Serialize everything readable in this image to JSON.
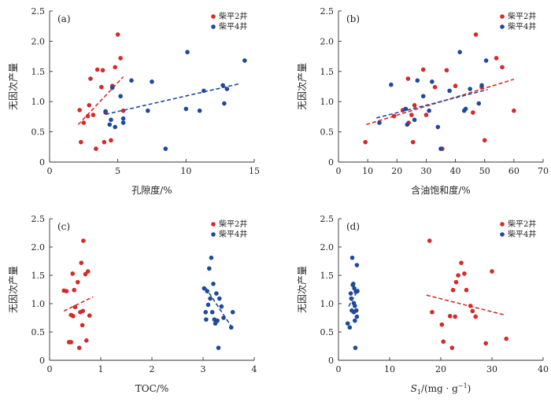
{
  "figure_title": "",
  "colors": {
    "well2": "#d42a2a",
    "well4": "#1f4a99",
    "axis": "#333333"
  },
  "legend": {
    "well2": "柴平2井",
    "well4": "柴平4井",
    "placement": "top-right"
  },
  "chart_data": [
    {
      "type": "scatter",
      "panel": "(a)",
      "xlabel": "孔隙度/%",
      "ylabel": "无因次产量",
      "xlim": [
        0,
        15
      ],
      "ylim": [
        0,
        2.5
      ],
      "xticks": [
        0,
        5,
        10,
        15
      ],
      "yticks": [
        0,
        0.5,
        1.0,
        1.5,
        2.0,
        2.5
      ],
      "ytick_labels": [
        "0",
        "0.5",
        "1.0",
        "1.5",
        "2.0",
        "2.5"
      ],
      "series": [
        {
          "name": "柴平2井",
          "key": "well2",
          "points": [
            [
              2.2,
              0.86
            ],
            [
              2.3,
              0.33
            ],
            [
              2.5,
              0.65
            ],
            [
              2.8,
              0.76
            ],
            [
              2.9,
              0.94
            ],
            [
              3.0,
              1.38
            ],
            [
              3.2,
              0.78
            ],
            [
              3.4,
              0.22
            ],
            [
              3.5,
              1.53
            ],
            [
              3.8,
              1.24
            ],
            [
              3.9,
              1.52
            ],
            [
              4.0,
              0.33
            ],
            [
              4.1,
              0.82
            ],
            [
              4.5,
              0.36
            ],
            [
              4.6,
              1.26
            ],
            [
              4.8,
              1.57
            ],
            [
              5.0,
              2.11
            ],
            [
              5.2,
              1.72
            ],
            [
              5.4,
              0.85
            ]
          ],
          "trend": [
            [
              2.1,
              0.62
            ],
            [
              5.4,
              1.41
            ]
          ]
        },
        {
          "name": "柴平4井",
          "key": "well4",
          "points": [
            [
              4.1,
              0.84
            ],
            [
              4.4,
              0.62
            ],
            [
              4.5,
              0.7
            ],
            [
              4.6,
              1.23
            ],
            [
              4.8,
              0.58
            ],
            [
              5.2,
              1.09
            ],
            [
              5.4,
              0.72
            ],
            [
              5.4,
              0.65
            ],
            [
              6.0,
              1.35
            ],
            [
              7.2,
              0.85
            ],
            [
              7.5,
              1.33
            ],
            [
              8.5,
              0.22
            ],
            [
              10.0,
              0.88
            ],
            [
              10.1,
              1.82
            ],
            [
              11.0,
              0.85
            ],
            [
              11.3,
              1.18
            ],
            [
              12.7,
              1.27
            ],
            [
              12.8,
              0.97
            ],
            [
              13.0,
              1.21
            ],
            [
              14.3,
              1.68
            ]
          ],
          "trend": [
            [
              4.1,
              0.79
            ],
            [
              14.0,
              1.3
            ]
          ]
        }
      ]
    },
    {
      "type": "scatter",
      "panel": "(b)",
      "xlabel": "含油饱和度/%",
      "ylabel": "无因次产量",
      "xlim": [
        0,
        70
      ],
      "ylim": [
        0,
        2.5
      ],
      "xticks": [
        0,
        10,
        20,
        30,
        40,
        50,
        60,
        70
      ],
      "yticks": [
        0,
        0.5,
        1.0,
        1.5,
        2.0,
        2.5
      ],
      "ytick_labels": [
        "0",
        "0.5",
        "1.0",
        "1.5",
        "2.0",
        "2.5"
      ],
      "series": [
        {
          "name": "柴平2井",
          "key": "well2",
          "points": [
            [
              9.2,
              0.33
            ],
            [
              19.0,
              0.76
            ],
            [
              22.0,
              0.86
            ],
            [
              23.8,
              1.38
            ],
            [
              24.0,
              0.65
            ],
            [
              25.0,
              0.78
            ],
            [
              25.5,
              0.33
            ],
            [
              26.0,
              0.94
            ],
            [
              29.0,
              1.53
            ],
            [
              30.0,
              0.78
            ],
            [
              33.0,
              1.24
            ],
            [
              35.5,
              0.22
            ],
            [
              37.0,
              1.52
            ],
            [
              40.0,
              1.26
            ],
            [
              46.0,
              0.82
            ],
            [
              47.0,
              2.11
            ],
            [
              49.0,
              1.24
            ],
            [
              50.0,
              0.36
            ],
            [
              54.0,
              1.72
            ],
            [
              56.0,
              1.57
            ],
            [
              60.0,
              0.85
            ]
          ],
          "trend": [
            [
              9.5,
              0.62
            ],
            [
              60.0,
              1.37
            ]
          ]
        },
        {
          "name": "柴平4井",
          "key": "well4",
          "points": [
            [
              14.0,
              0.65
            ],
            [
              18.0,
              1.28
            ],
            [
              23.0,
              0.88
            ],
            [
              23.5,
              0.62
            ],
            [
              26.0,
              0.7
            ],
            [
              27.0,
              1.35
            ],
            [
              29.0,
              1.09
            ],
            [
              31.0,
              0.85
            ],
            [
              32.0,
              1.33
            ],
            [
              34.0,
              0.58
            ],
            [
              35.0,
              0.22
            ],
            [
              38.0,
              1.18
            ],
            [
              41.5,
              1.82
            ],
            [
              43.0,
              0.85
            ],
            [
              43.5,
              0.88
            ],
            [
              45.0,
              1.21
            ],
            [
              48.0,
              0.97
            ],
            [
              49.0,
              1.27
            ],
            [
              50.5,
              1.68
            ]
          ],
          "trend": [
            [
              13.0,
              0.73
            ],
            [
              51.0,
              1.2
            ]
          ]
        }
      ]
    },
    {
      "type": "scatter",
      "panel": "(c)",
      "xlabel": "TOC/%",
      "ylabel": "无因次产量",
      "xlim": [
        0,
        4
      ],
      "ylim": [
        0,
        2.5
      ],
      "xticks": [
        0,
        1,
        2,
        3,
        4
      ],
      "yticks": [
        0,
        0.5,
        1.0,
        1.5,
        2.0,
        2.5
      ],
      "ytick_labels": [
        "0",
        "0.5",
        "1.0",
        "1.5",
        "2.0",
        "2.5"
      ],
      "series": [
        {
          "name": "柴平2井",
          "key": "well2",
          "points": [
            [
              0.28,
              1.23
            ],
            [
              0.33,
              1.22
            ],
            [
              0.38,
              0.32
            ],
            [
              0.42,
              0.32
            ],
            [
              0.42,
              0.8
            ],
            [
              0.45,
              1.53
            ],
            [
              0.46,
              0.78
            ],
            [
              0.5,
              0.94
            ],
            [
              0.55,
              1.38
            ],
            [
              0.58,
              0.22
            ],
            [
              0.6,
              0.85
            ],
            [
              0.62,
              1.72
            ],
            [
              0.64,
              0.62
            ],
            [
              0.65,
              0.87
            ],
            [
              0.66,
              2.11
            ],
            [
              0.7,
              1.52
            ],
            [
              0.72,
              0.35
            ],
            [
              0.75,
              1.57
            ],
            [
              0.78,
              0.79
            ],
            [
              0.48,
              1.24
            ]
          ],
          "trend": [
            [
              0.28,
              0.87
            ],
            [
              0.85,
              1.12
            ]
          ]
        },
        {
          "name": "柴平4井",
          "key": "well4",
          "points": [
            [
              3.02,
              1.27
            ],
            [
              3.05,
              0.85
            ],
            [
              3.08,
              1.22
            ],
            [
              3.1,
              0.98
            ],
            [
              3.12,
              1.62
            ],
            [
              3.14,
              1.09
            ],
            [
              3.16,
              1.81
            ],
            [
              3.18,
              0.85
            ],
            [
              3.2,
              1.35
            ],
            [
              3.22,
              0.72
            ],
            [
              3.24,
              0.65
            ],
            [
              3.26,
              1.18
            ],
            [
              3.28,
              0.7
            ],
            [
              3.3,
              0.22
            ],
            [
              3.32,
              1.09
            ],
            [
              3.36,
              0.95
            ],
            [
              3.4,
              0.75
            ],
            [
              3.55,
              0.58
            ],
            [
              3.58,
              0.85
            ],
            [
              3.06,
              0.72
            ]
          ],
          "trend": [
            [
              3.05,
              1.28
            ],
            [
              3.55,
              0.6
            ]
          ]
        }
      ]
    },
    {
      "type": "scatter",
      "panel": "(d)",
      "xlabel_main": "S",
      "xlabel_sub": "1",
      "xlabel_unit": "/(mg · g",
      "xlabel_sup": "−1",
      "xlabel_end": ")",
      "ylabel": "无因次产量",
      "xlim": [
        0,
        40
      ],
      "ylim": [
        0,
        2.5
      ],
      "xticks": [
        0,
        10,
        20,
        30,
        40
      ],
      "yticks": [
        0,
        0.5,
        1.0,
        1.5,
        2.0,
        2.5
      ],
      "ytick_labels": [
        "0",
        "0.5",
        "1.0",
        "1.5",
        "2.0",
        "2.5"
      ],
      "series": [
        {
          "name": "柴平2井",
          "key": "well2",
          "points": [
            [
              17.8,
              2.11
            ],
            [
              18.3,
              0.85
            ],
            [
              20.2,
              0.63
            ],
            [
              20.5,
              0.33
            ],
            [
              21.8,
              0.78
            ],
            [
              22.2,
              0.22
            ],
            [
              22.4,
              1.24
            ],
            [
              22.8,
              0.77
            ],
            [
              23.0,
              1.38
            ],
            [
              23.4,
              1.5
            ],
            [
              24.0,
              1.72
            ],
            [
              24.6,
              1.53
            ],
            [
              25.0,
              1.24
            ],
            [
              25.8,
              0.96
            ],
            [
              26.2,
              0.87
            ],
            [
              26.8,
              0.77
            ],
            [
              28.8,
              0.3
            ],
            [
              30.0,
              1.57
            ],
            [
              32.8,
              0.38
            ]
          ],
          "trend": [
            [
              17.2,
              1.15
            ],
            [
              32.5,
              0.8
            ]
          ]
        },
        {
          "name": "柴平4井",
          "key": "well4",
          "points": [
            [
              1.8,
              0.65
            ],
            [
              2.2,
              0.58
            ],
            [
              2.4,
              1.18
            ],
            [
              2.5,
              1.09
            ],
            [
              2.6,
              0.88
            ],
            [
              2.7,
              1.81
            ],
            [
              2.8,
              1.33
            ],
            [
              2.9,
              1.35
            ],
            [
              3.0,
              0.85
            ],
            [
              3.0,
              1.01
            ],
            [
              3.1,
              1.27
            ],
            [
              3.2,
              0.96
            ],
            [
              3.2,
              0.7
            ],
            [
              3.3,
              0.22
            ],
            [
              3.4,
              1.21
            ],
            [
              3.5,
              0.88
            ],
            [
              3.6,
              1.68
            ],
            [
              3.6,
              0.77
            ],
            [
              3.7,
              1.22
            ]
          ],
          "trend": [
            [
              2.0,
              0.95
            ],
            [
              3.9,
              1.26
            ]
          ]
        }
      ]
    }
  ]
}
